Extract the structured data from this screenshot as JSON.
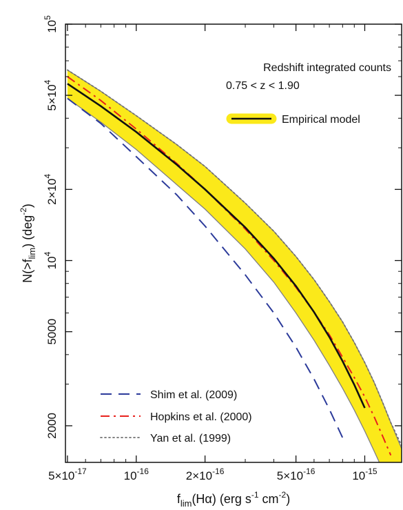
{
  "chart_data": {
    "type": "line",
    "x_scale": "log",
    "y_scale": "log",
    "xlim": [
      4.9e-17,
      1.45e-15
    ],
    "ylim": [
      1400,
      100000
    ],
    "grid": false,
    "xlabel": {
      "main": "f",
      "sub": "lim",
      "rest": "(Hα) (erg s",
      "sup1": "-1",
      "mid": " cm",
      "sup2": "-2",
      "end": ")"
    },
    "ylabel": {
      "main": "N(>f",
      "sub": "lim",
      "mid": ") (deg",
      "sup": "-2",
      "end": ")"
    },
    "x_ticks": [
      {
        "value": 5e-17,
        "mant": "5×10",
        "exp": "-17"
      },
      {
        "value": 1e-16,
        "mant": "10",
        "exp": "-16"
      },
      {
        "value": 2e-16,
        "mant": "2×10",
        "exp": "-16"
      },
      {
        "value": 5e-16,
        "mant": "5×10",
        "exp": "-16"
      },
      {
        "value": 1e-15,
        "mant": "10",
        "exp": "-15"
      }
    ],
    "y_ticks": [
      {
        "value": 2000,
        "mant": "2000",
        "exp": ""
      },
      {
        "value": 5000,
        "mant": "5000",
        "exp": ""
      },
      {
        "value": 10000,
        "mant": "10",
        "exp": "4"
      },
      {
        "value": 20000,
        "mant": "2×10",
        "exp": "4"
      },
      {
        "value": 50000,
        "mant": "5×10",
        "exp": "4"
      },
      {
        "value": 100000,
        "mant": "10",
        "exp": "5"
      }
    ],
    "annotation": [
      "Redshift integrated counts",
      "0.75 < z < 1.90"
    ],
    "band": {
      "x": [
        5e-17,
        7e-17,
        1e-16,
        1.5e-16,
        2e-16,
        3e-16,
        4e-16,
        5e-16,
        6e-16,
        7e-16,
        8e-16,
        9e-16,
        1e-15,
        1.1e-15,
        1.2e-15,
        1.3e-15,
        1.45e-15
      ],
      "upper": [
        64000,
        52000,
        41000,
        31000,
        25000,
        17500,
        13300,
        10400,
        8300,
        6700,
        5500,
        4500,
        3700,
        3050,
        2500,
        2060,
        1600
      ],
      "lower": [
        48500,
        38500,
        29500,
        21000,
        16500,
        11200,
        8100,
        6000,
        4600,
        3600,
        2880,
        2330,
        1900,
        1560,
        1300,
        1100,
        880
      ]
    },
    "series": [
      {
        "name": "Empirical model",
        "style": "solid",
        "color": "#111111",
        "x": [
          5e-17,
          7e-17,
          1e-16,
          1.5e-16,
          2e-16,
          3e-16,
          4e-16,
          5e-16,
          6e-16,
          7e-16,
          8e-16,
          9e-16,
          1e-15
        ],
        "y": [
          56000,
          45000,
          35000,
          25500,
          20000,
          13800,
          10200,
          7800,
          6050,
          4750,
          3750,
          2980,
          2380
        ]
      },
      {
        "name": "Shim et al. (2009)",
        "style": "dashed",
        "color": "#2b3a9a",
        "x": [
          5e-17,
          7e-17,
          1e-16,
          1.5e-16,
          2e-16,
          3e-16,
          4e-16,
          5e-16,
          6e-16,
          7e-16,
          8e-16
        ],
        "y": [
          48500,
          38000,
          27500,
          19000,
          14000,
          8700,
          6000,
          4300,
          3150,
          2350,
          1780
        ]
      },
      {
        "name": "Hopkins et al. (2000)",
        "style": "dashdot",
        "color": "#e8211c",
        "x": [
          5e-17,
          7e-17,
          1e-16,
          1.5e-16,
          2e-16,
          3e-16,
          4e-16,
          5e-16,
          6e-16,
          7e-16,
          8e-16,
          9e-16,
          1e-15,
          1.1e-15,
          1.2e-15,
          1.3e-15
        ],
        "y": [
          60000,
          47500,
          36000,
          25800,
          20000,
          13600,
          10000,
          7700,
          6050,
          4850,
          3900,
          3200,
          2650,
          2180,
          1800,
          1500
        ]
      },
      {
        "name": "Yan et al. (1999)",
        "style": "dotted",
        "color": "#707070",
        "x": [
          5e-17,
          7e-17,
          1e-16,
          1.5e-16,
          2e-16,
          3e-16,
          4e-16,
          5e-16,
          6e-16,
          7e-16,
          8e-16,
          9e-16,
          1e-15,
          1.1e-15,
          1.2e-15,
          1.3e-15,
          1.45e-15
        ],
        "y": [
          64000,
          52000,
          41000,
          31000,
          25000,
          17500,
          13300,
          10400,
          8300,
          6700,
          5500,
          4500,
          3700,
          3050,
          2500,
          2060,
          1650
        ]
      }
    ],
    "legend_top": {
      "label": "Empirical model",
      "placement": "top-right"
    },
    "legend_bottom": {
      "placement": "bottom-left",
      "items": [
        {
          "label": "Shim et al. (2009)",
          "style": "dashed",
          "color": "#2b3a9a"
        },
        {
          "label": "Hopkins et al. (2000)",
          "style": "dashdot",
          "color": "#e8211c"
        },
        {
          "label": "Yan et al. (1999)",
          "style": "dotted",
          "color": "#707070"
        }
      ]
    },
    "colors": {
      "band_fill": "#fbe91a",
      "band_edge": "#808080",
      "axis": "#111111"
    }
  }
}
